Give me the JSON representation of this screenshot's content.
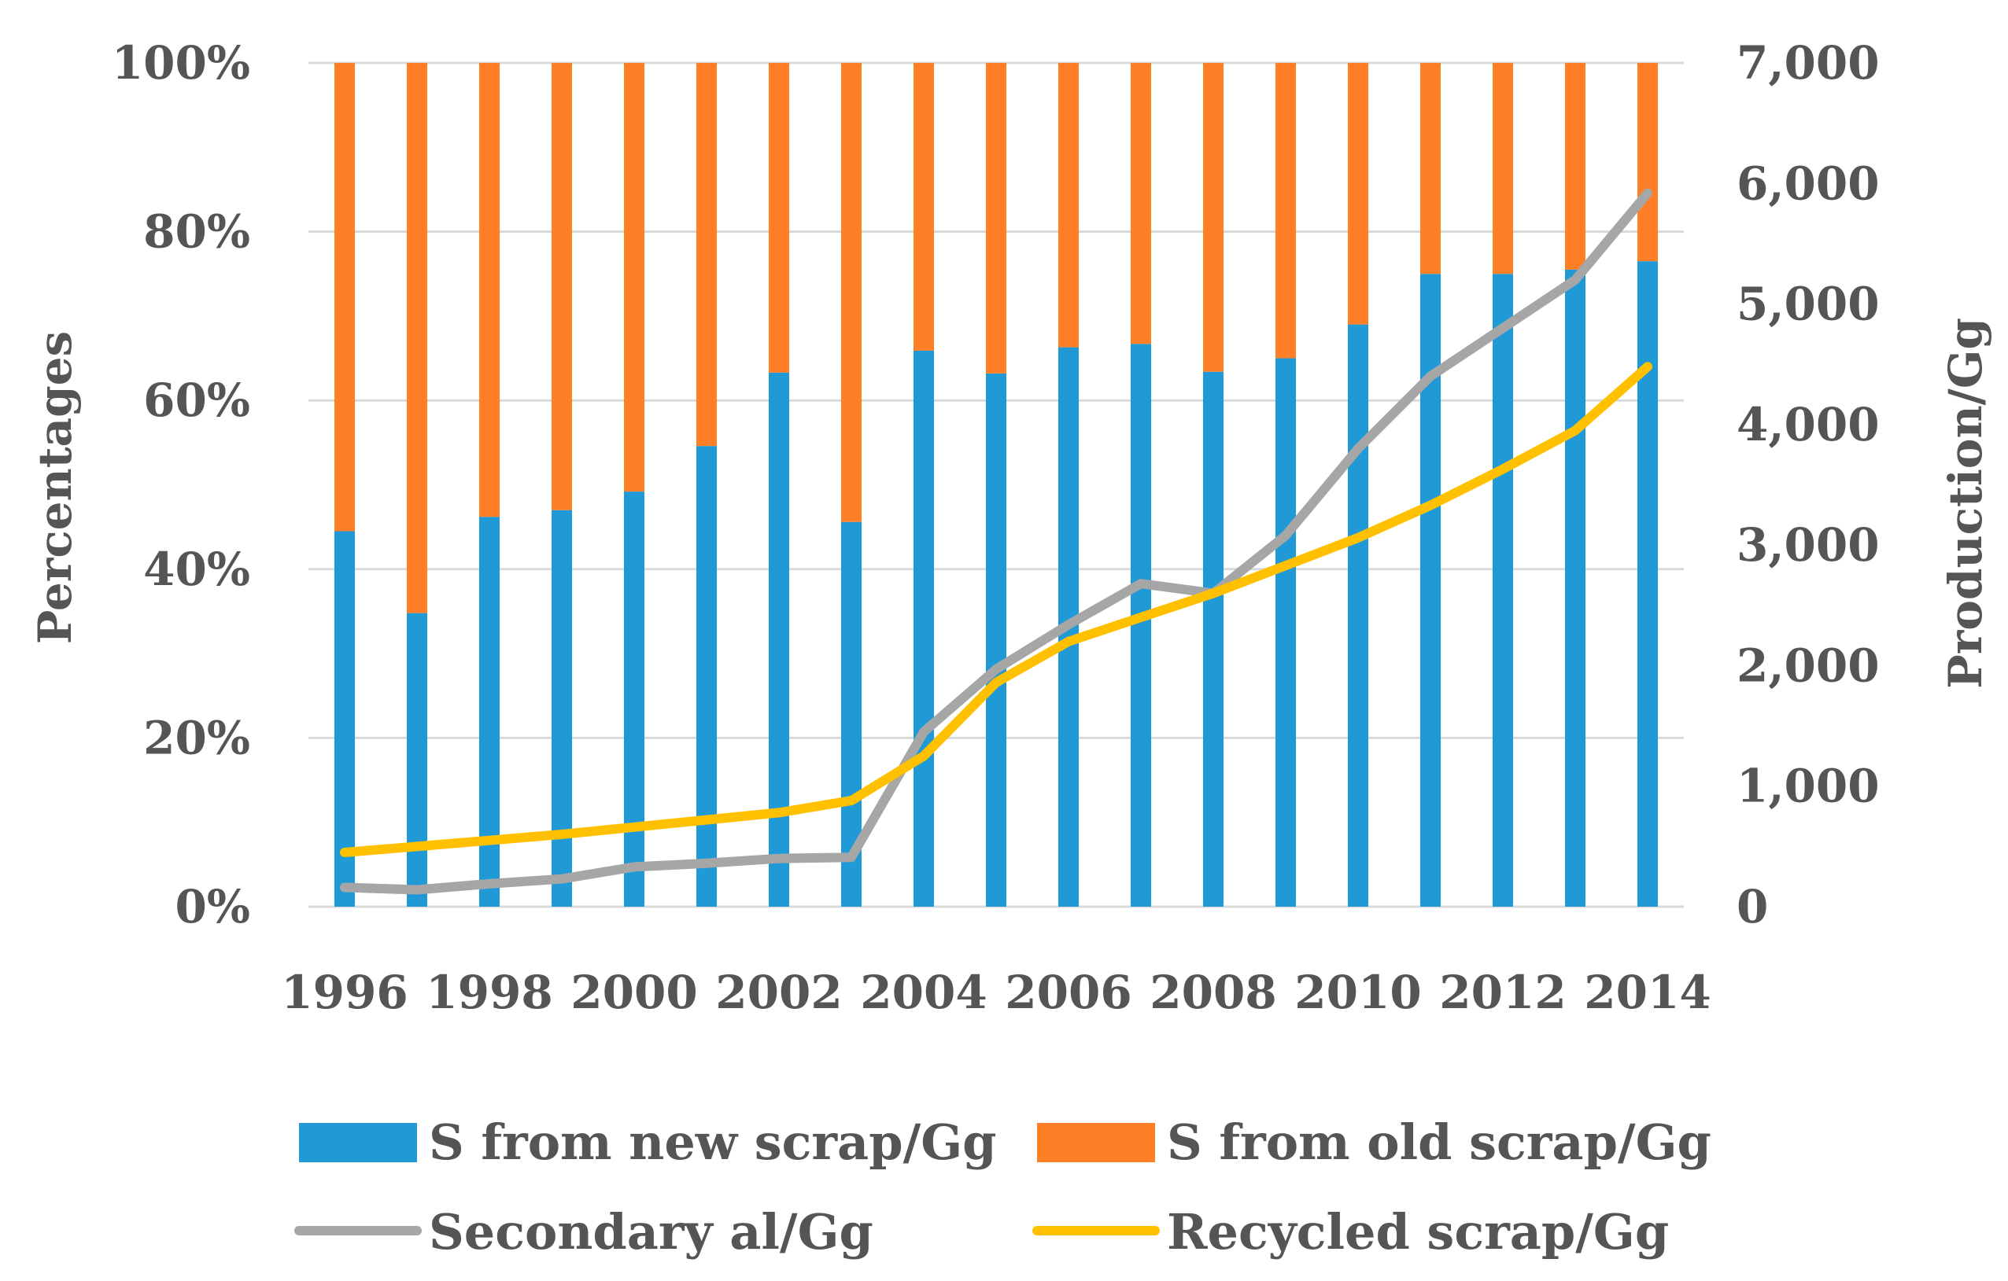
{
  "chart_data": {
    "type": "bar",
    "stacked": true,
    "percent_stacked": true,
    "years": [
      1996,
      1997,
      1998,
      1999,
      2000,
      2001,
      2002,
      2003,
      2004,
      2005,
      2006,
      2007,
      2008,
      2009,
      2010,
      2011,
      2012,
      2013,
      2014
    ],
    "x_tick_labels": [
      "1996",
      "1998",
      "2000",
      "2002",
      "2004",
      "2006",
      "2008",
      "2010",
      "2012",
      "2014"
    ],
    "left_axis": {
      "title": "Percentages",
      "range": [
        0,
        100
      ],
      "ticks": [
        0,
        20,
        40,
        60,
        80,
        100
      ],
      "tick_labels": [
        "0%",
        "20%",
        "40%",
        "60%",
        "80%",
        "100%"
      ]
    },
    "right_axis": {
      "title": "Production/Gg",
      "range": [
        0,
        7000
      ],
      "ticks": [
        0,
        1000,
        2000,
        3000,
        4000,
        5000,
        6000,
        7000
      ],
      "tick_labels": [
        "0",
        "1,000",
        "2,000",
        "3,000",
        "4,000",
        "5,000",
        "6,000",
        "7,000"
      ]
    },
    "series": [
      {
        "name": "S from new scrap/Gg",
        "kind": "bar",
        "axis": "left",
        "color": "#1F9AD6",
        "values": [
          44.5,
          34.8,
          46.2,
          47.0,
          49.2,
          54.6,
          63.3,
          45.6,
          65.9,
          63.2,
          66.3,
          66.7,
          63.4,
          65.0,
          69.0,
          75.0,
          75.0,
          75.5,
          76.5
        ]
      },
      {
        "name": "S from old scrap/Gg",
        "kind": "bar",
        "axis": "left",
        "color": "#FF7F27",
        "values": [
          55.5,
          65.2,
          53.8,
          53.0,
          50.8,
          45.4,
          36.7,
          54.4,
          34.1,
          36.8,
          33.7,
          33.3,
          36.6,
          35.0,
          31.0,
          25.0,
          25.0,
          24.5,
          23.5
        ]
      },
      {
        "name": "Secondary al/Gg",
        "kind": "line",
        "axis": "right",
        "color": "#A6A6A6",
        "values": [
          160,
          140,
          190,
          230,
          330,
          360,
          400,
          410,
          1450,
          1970,
          2340,
          2680,
          2600,
          3080,
          3800,
          4400,
          4800,
          5200,
          5920
        ]
      },
      {
        "name": "Recycled scrap/Gg",
        "kind": "line",
        "axis": "right",
        "color": "#FFC000",
        "values": [
          450,
          500,
          550,
          600,
          660,
          720,
          780,
          880,
          1250,
          1860,
          2200,
          2400,
          2600,
          2830,
          3060,
          3330,
          3630,
          3950,
          4480
        ]
      }
    ],
    "legend": [
      "S from new scrap/Gg",
      "S from old scrap/Gg",
      "Secondary al/Gg",
      "Recycled scrap/Gg"
    ],
    "legend_position": "bottom",
    "grid": true
  }
}
